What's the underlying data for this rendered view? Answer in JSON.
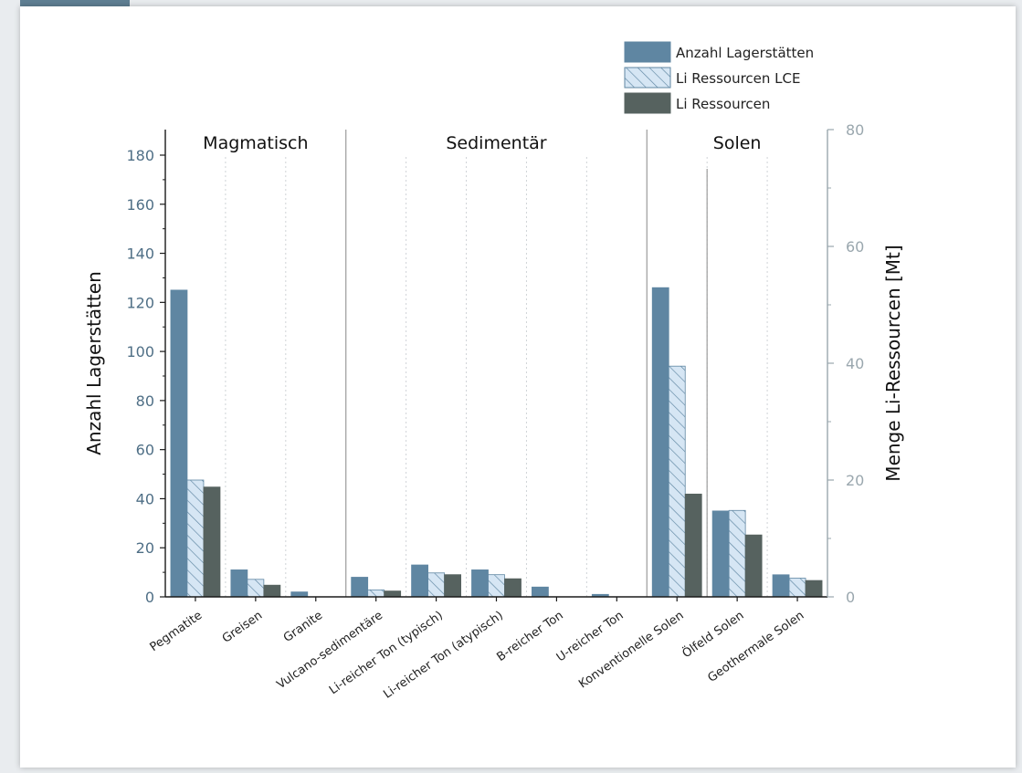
{
  "chart_data": {
    "type": "bar",
    "categories": [
      "Pegmatite",
      "Greisen",
      "Granite",
      "Vulcano-sedimentäre",
      "Li-reicher Ton (typisch)",
      "Li-reicher Ton (atypisch)",
      "B-reicher Ton",
      "U-reicher Ton",
      "Konventionelle Solen",
      "Ölfeld Solen",
      "Geothermale Solen"
    ],
    "groups": [
      {
        "label": "Magmatisch",
        "from": 0,
        "to": 2
      },
      {
        "label": "Sedimentär",
        "from": 3,
        "to": 7
      },
      {
        "label": "Solen",
        "from": 8,
        "to": 10
      }
    ],
    "series": [
      {
        "name": "Anzahl Lagerstätten",
        "axis": "left",
        "values": [
          125,
          11,
          2,
          8,
          13,
          11,
          4,
          1,
          126,
          35,
          9
        ]
      },
      {
        "name": "Li Ressourcen LCE",
        "axis": "right",
        "values": [
          20,
          3,
          0,
          1.2,
          4.1,
          3.8,
          0,
          0,
          39.5,
          14.8,
          3.2
        ]
      },
      {
        "name": "Li Ressourcen",
        "axis": "right",
        "values": [
          18.8,
          2,
          0,
          1,
          3.8,
          3.1,
          0,
          0,
          17.6,
          10.6,
          2.8
        ]
      }
    ],
    "ylabel": "Anzahl Lagerstätten",
    "y2label": "Menge Li-Ressourcen [Mt]",
    "ylim": [
      0,
      190
    ],
    "y2lim": [
      0,
      80
    ],
    "yticks": [
      0,
      20,
      40,
      60,
      80,
      100,
      120,
      140,
      160,
      180
    ],
    "y2ticks": [
      0,
      20,
      40,
      60,
      80
    ],
    "legend_position": "top-right",
    "colors": {
      "anzahl": "#5f86a2",
      "lce_fill": "#d6e6f4",
      "lce_hatch": "#5f86a2",
      "li": "#56625f",
      "axis": "#1a1a1a",
      "tick_text": "#4f6f86",
      "right_axis": "#9aa7ae"
    }
  }
}
